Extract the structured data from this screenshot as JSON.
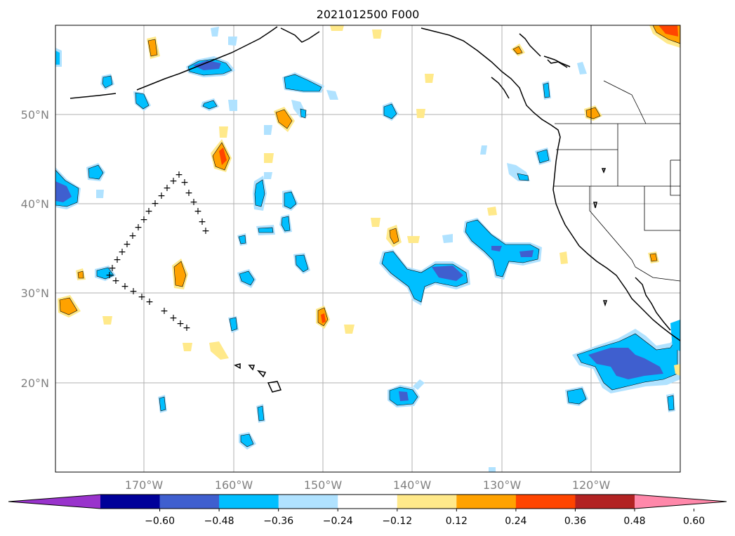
{
  "title": "2021012500 F000",
  "lat_labels": [
    "50°N",
    "40°N",
    "30°N",
    "20°N"
  ],
  "lon_labels": [
    "170°W",
    "160°W",
    "150°W",
    "140°W",
    "130°W",
    "120°W"
  ],
  "colorbar": {
    "ticks": [
      "−0.60",
      "−0.48",
      "−0.36",
      "−0.24",
      "−0.12",
      "0.12",
      "0.24",
      "0.36",
      "0.48",
      "0.60"
    ],
    "colors": [
      "#9933cc",
      "#000099",
      "#3f5fcf",
      "#00bfff",
      "#b0e2ff",
      "#ffffff",
      "#ffe98a",
      "#ffa200",
      "#ff4500",
      "#b22222",
      "#ff88aa"
    ]
  },
  "symbols": {
    "plus": "+"
  }
}
